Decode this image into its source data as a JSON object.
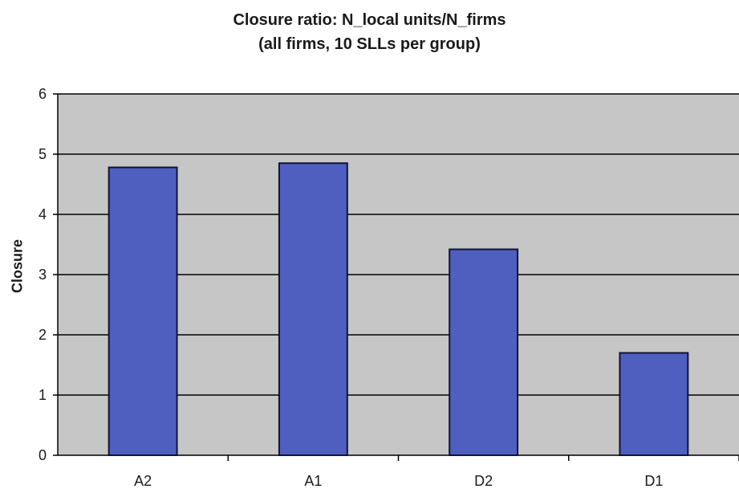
{
  "chart_data": {
    "type": "bar",
    "title": "Closure ratio: N_local units/N_firms",
    "subtitle": "(all firms, 10 SLLs per group)",
    "xlabel": "",
    "ylabel": "Closure",
    "categories": [
      "A2",
      "A1",
      "D2",
      "D1"
    ],
    "values": [
      4.78,
      4.85,
      3.42,
      1.7
    ],
    "ylim": [
      0,
      6
    ],
    "yticks": [
      "0",
      "1",
      "2",
      "3",
      "4",
      "5",
      "6"
    ],
    "grid": true,
    "legend": "none",
    "colors": {
      "bar_fill": "#4f5fbf",
      "bar_stroke": "#0f1433",
      "plot_background": "#c6c6c6",
      "gridline": "#000000"
    }
  }
}
